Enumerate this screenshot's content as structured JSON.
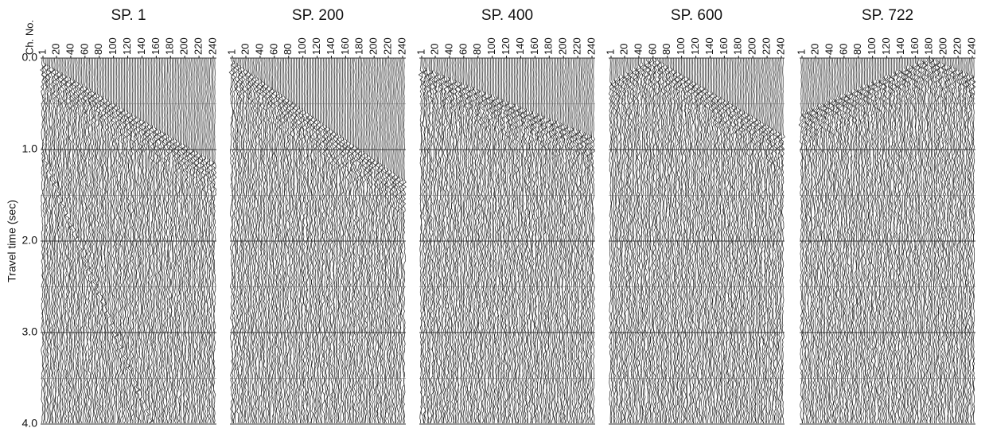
{
  "chart_data": [
    {
      "type": "seismic",
      "title": "SP. 1",
      "xlabel": "Ch. No.",
      "ylabel": "Travel time (sec)",
      "xlim": [
        1,
        240
      ],
      "xticks": [
        1,
        20,
        40,
        60,
        80,
        100,
        120,
        140,
        160,
        180,
        200,
        220,
        240
      ],
      "ylim": [
        0,
        4
      ],
      "y_reversed": true,
      "yticks": [
        {
          "value": 0,
          "label": "0.0"
        },
        {
          "value": 1,
          "label": "1.0"
        },
        {
          "value": 2,
          "label": "2.0"
        },
        {
          "value": 3,
          "label": "3.0"
        },
        {
          "value": 4,
          "label": "4.0"
        }
      ],
      "yminor": [
        0.5,
        1.5,
        2.5,
        3.5
      ],
      "grid": true
    },
    {
      "type": "seismic",
      "title": "SP. 200",
      "xlim": [
        1,
        240
      ],
      "xticks": [
        1,
        20,
        40,
        60,
        80,
        100,
        120,
        140,
        160,
        180,
        200,
        220,
        240
      ],
      "ylim": [
        0,
        4
      ],
      "y_reversed": true,
      "yticks": [
        {
          "value": 0,
          "label": "0.0"
        },
        {
          "value": 1,
          "label": "1.0"
        },
        {
          "value": 2,
          "label": "2.0"
        },
        {
          "value": 3,
          "label": "3.0"
        },
        {
          "value": 4,
          "label": "4.0"
        }
      ],
      "yminor": [
        0.5,
        1.5,
        2.5,
        3.5
      ],
      "grid": true
    },
    {
      "type": "seismic",
      "title": "SP. 400",
      "xlim": [
        1,
        240
      ],
      "xticks": [
        1,
        20,
        40,
        60,
        80,
        100,
        120,
        140,
        160,
        180,
        200,
        220,
        240
      ],
      "ylim": [
        0,
        4
      ],
      "y_reversed": true,
      "yticks": [
        {
          "value": 0,
          "label": "0.0"
        },
        {
          "value": 1,
          "label": "1.0"
        },
        {
          "value": 2,
          "label": "2.0"
        },
        {
          "value": 3,
          "label": "3.0"
        },
        {
          "value": 4,
          "label": "4.0"
        }
      ],
      "yminor": [
        0.5,
        1.5,
        2.5,
        3.5
      ],
      "grid": true
    },
    {
      "type": "seismic",
      "title": "SP. 600",
      "xlim": [
        1,
        240
      ],
      "xticks": [
        1,
        20,
        40,
        60,
        80,
        100,
        120,
        140,
        160,
        180,
        200,
        220,
        240
      ],
      "ylim": [
        0,
        4
      ],
      "y_reversed": true,
      "yticks": [
        {
          "value": 0,
          "label": "0.0"
        },
        {
          "value": 1,
          "label": "1.0"
        },
        {
          "value": 2,
          "label": "2.0"
        },
        {
          "value": 3,
          "label": "3.0"
        },
        {
          "value": 4,
          "label": "4.0"
        }
      ],
      "yminor": [
        0.5,
        1.5,
        2.5,
        3.5
      ],
      "grid": true
    },
    {
      "type": "seismic",
      "title": "SP. 722",
      "xlim": [
        1,
        240
      ],
      "xticks": [
        1,
        20,
        40,
        60,
        80,
        100,
        120,
        140,
        160,
        180,
        200,
        220,
        240
      ],
      "ylim": [
        0,
        4
      ],
      "y_reversed": true,
      "yticks": [
        {
          "value": 0,
          "label": "0.0"
        },
        {
          "value": 1,
          "label": "1.0"
        },
        {
          "value": 2,
          "label": "2.0"
        },
        {
          "value": 3,
          "label": "3.0"
        },
        {
          "value": 4,
          "label": "4.0"
        }
      ],
      "yminor": [
        0.5,
        1.5,
        2.5,
        3.5
      ],
      "grid": true
    }
  ]
}
